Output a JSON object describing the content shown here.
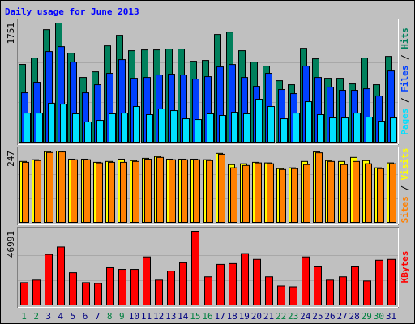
{
  "title": "Daily usage for June 2013",
  "chart_data": [
    {
      "type": "bar",
      "ylim": [
        0,
        1751
      ],
      "yticks": [
        1751
      ],
      "series": [
        {
          "name": "Hits",
          "color": "#00805c",
          "values": [
            1143,
            1238,
            1654,
            1751,
            1309,
            952,
            1035,
            1416,
            1571,
            1345,
            1357,
            1357,
            1369,
            1369,
            1190,
            1202,
            1583,
            1618,
            1345,
            1178,
            1119,
            904,
            845,
            1380,
            1226,
            940,
            940,
            857,
            1238,
            845,
            1261
          ]
        },
        {
          "name": "Files",
          "color": "#0040ff",
          "values": [
            726,
            881,
            1333,
            1404,
            1178,
            726,
            845,
            1012,
            1214,
            940,
            952,
            988,
            1000,
            988,
            928,
            964,
            1107,
            1142,
            952,
            821,
            1012,
            774,
            714,
            1119,
            952,
            809,
            762,
            762,
            785,
            678,
            1047
          ]
        },
        {
          "name": "Pages",
          "color": "#00e0ff",
          "values": [
            428,
            428,
            571,
            559,
            417,
            298,
            321,
            417,
            428,
            524,
            405,
            488,
            464,
            345,
            333,
            417,
            393,
            440,
            417,
            631,
            524,
            345,
            428,
            595,
            405,
            357,
            357,
            428,
            369,
            309,
            357
          ]
        }
      ]
    },
    {
      "type": "bar",
      "ylim": [
        0,
        247
      ],
      "yticks": [
        247
      ],
      "series": [
        {
          "name": "Visits",
          "color": "#ffff00",
          "values": [
            211,
            217,
            245,
            247,
            219,
            219,
            208,
            211,
            219,
            214,
            222,
            228,
            219,
            219,
            219,
            217,
            239,
            200,
            203,
            208,
            206,
            186,
            189,
            211,
            244,
            214,
            211,
            225,
            214,
            189,
            206
          ]
        },
        {
          "name": "Sites",
          "color": "#ff8000",
          "values": [
            208,
            214,
            242,
            244,
            217,
            217,
            206,
            208,
            208,
            211,
            219,
            225,
            217,
            217,
            217,
            214,
            236,
            189,
            197,
            206,
            203,
            183,
            186,
            200,
            241,
            211,
            200,
            211,
            203,
            186,
            203
          ]
        }
      ]
    },
    {
      "type": "bar",
      "ylim": [
        0,
        46991
      ],
      "yticks": [
        46991
      ],
      "categories": [
        "1",
        "2",
        "3",
        "4",
        "5",
        "6",
        "7",
        "8",
        "9",
        "10",
        "11",
        "12",
        "13",
        "14",
        "15",
        "16",
        "17",
        "18",
        "19",
        "20",
        "21",
        "22",
        "23",
        "24",
        "25",
        "26",
        "27",
        "28",
        "29",
        "30",
        "31"
      ],
      "category_colors": [
        "#008040",
        "#008040",
        "#000080",
        "#000080",
        "#000080",
        "#000080",
        "#000080",
        "#008040",
        "#008040",
        "#000080",
        "#000080",
        "#000080",
        "#000080",
        "#000080",
        "#008040",
        "#008040",
        "#000080",
        "#000080",
        "#000080",
        "#000080",
        "#000080",
        "#008040",
        "#008040",
        "#000080",
        "#000080",
        "#000080",
        "#000080",
        "#000080",
        "#008040",
        "#008040",
        "#000080"
      ],
      "series": [
        {
          "name": "KBytes",
          "color": "#ff0000",
          "values": [
            14256,
            15840,
            32208,
            36960,
            20592,
            14256,
            13728,
            23760,
            22704,
            22704,
            30624,
            15840,
            21648,
            26928,
            46991,
            17952,
            25872,
            26400,
            32736,
            29040,
            17952,
            12144,
            11616,
            30624,
            24288,
            15840,
            17952,
            24288,
            15312,
            28512,
            29040
          ]
        }
      ]
    }
  ]
}
